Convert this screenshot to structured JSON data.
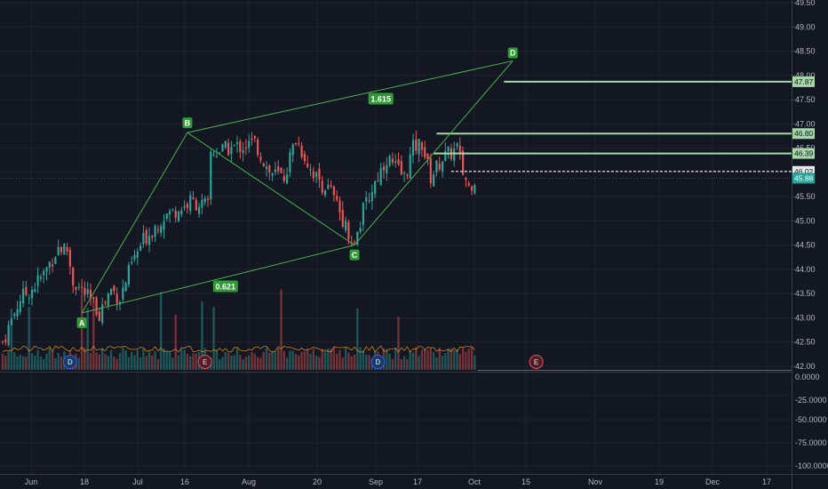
{
  "chart_data": {
    "type": "candlestick",
    "price_axis": {
      "ticks": [
        "49.50",
        "49.00",
        "48.50",
        "48.00",
        "47.50",
        "47.00",
        "46.50",
        "46.00",
        "45.50",
        "45.00",
        "44.50",
        "44.00",
        "43.50",
        "43.00",
        "42.50",
        "42.00"
      ],
      "range": [
        41.95,
        49.55
      ]
    },
    "volume_axis": {
      "ticks": [
        "0.0000",
        "-25.0000",
        "-50.0000",
        "-75.0000",
        "-100.0000"
      ]
    },
    "time_axis": {
      "labels": [
        "Jun",
        "18",
        "Jul",
        "16",
        "Aug",
        "20",
        "Sep",
        "17",
        "Oct",
        "15",
        "Nov",
        "19",
        "Dec",
        "17"
      ]
    },
    "price_tags": [
      {
        "value": 47.87,
        "label": "47.87",
        "color": "#a5d6a7"
      },
      {
        "value": 46.8,
        "label": "46.80",
        "color": "#a5d6a7"
      },
      {
        "value": 46.39,
        "label": "46.39",
        "color": "#a5d6a7"
      },
      {
        "value": 46.02,
        "label": "46.02",
        "color": "#e8e8e8"
      },
      {
        "value": 45.88,
        "label": "45.88",
        "color": "#26a69a"
      }
    ],
    "harmonic_pattern": {
      "points": [
        {
          "label": "A",
          "day": 27,
          "value": 43.1
        },
        {
          "label": "B",
          "day": 63,
          "value": 46.82
        },
        {
          "label": "C",
          "day": 120,
          "value": 44.5
        },
        {
          "label": "D",
          "day": 174,
          "value": 48.3
        }
      ],
      "ratios": [
        {
          "label": "0.621",
          "day": 76,
          "value": 43.65
        },
        {
          "label": "1.615",
          "day": 129,
          "value": 47.52
        }
      ],
      "levels": [
        {
          "value": 47.87,
          "from_day": 171
        },
        {
          "value": 46.8,
          "from_day": 148
        },
        {
          "value": 46.39,
          "from_day": 147
        }
      ],
      "dashed_level": {
        "value": 46.02,
        "from_day": 153
      }
    },
    "events": [
      {
        "letter": "D",
        "day": 23
      },
      {
        "letter": "E",
        "day": 69
      },
      {
        "letter": "D",
        "day": 128
      },
      {
        "letter": "E",
        "day": 182
      }
    ],
    "key_closes": [
      {
        "day": 0,
        "value": 42.5
      },
      {
        "day": 6,
        "value": 43.4
      },
      {
        "day": 10,
        "value": 43.6
      },
      {
        "day": 14,
        "value": 43.9
      },
      {
        "day": 19,
        "value": 44.45
      },
      {
        "day": 22,
        "value": 44.4
      },
      {
        "day": 24,
        "value": 43.75
      },
      {
        "day": 28,
        "value": 43.5
      },
      {
        "day": 33,
        "value": 43.1
      },
      {
        "day": 37,
        "value": 43.6
      },
      {
        "day": 40,
        "value": 43.4
      },
      {
        "day": 44,
        "value": 44.1
      },
      {
        "day": 48,
        "value": 44.6
      },
      {
        "day": 55,
        "value": 45.1
      },
      {
        "day": 62,
        "value": 45.3
      },
      {
        "day": 64,
        "value": 45.4
      },
      {
        "day": 70,
        "value": 45.3
      },
      {
        "day": 71,
        "value": 46.4
      },
      {
        "day": 78,
        "value": 46.5
      },
      {
        "day": 82,
        "value": 46.55
      },
      {
        "day": 86,
        "value": 46.6
      },
      {
        "day": 91,
        "value": 46.0
      },
      {
        "day": 96,
        "value": 45.9
      },
      {
        "day": 100,
        "value": 46.7
      },
      {
        "day": 104,
        "value": 46.2
      },
      {
        "day": 108,
        "value": 45.8
      },
      {
        "day": 112,
        "value": 45.6
      },
      {
        "day": 117,
        "value": 44.9
      },
      {
        "day": 120,
        "value": 44.5
      },
      {
        "day": 123,
        "value": 45.2
      },
      {
        "day": 127,
        "value": 45.8
      },
      {
        "day": 131,
        "value": 46.3
      },
      {
        "day": 134,
        "value": 46.1
      },
      {
        "day": 137,
        "value": 45.9
      },
      {
        "day": 140,
        "value": 46.5
      },
      {
        "day": 143,
        "value": 46.6
      },
      {
        "day": 146,
        "value": 45.9
      },
      {
        "day": 150,
        "value": 46.3
      },
      {
        "day": 153,
        "value": 46.4
      },
      {
        "day": 155,
        "value": 46.5
      },
      {
        "day": 157,
        "value": 46.0
      },
      {
        "day": 159,
        "value": 45.7
      },
      {
        "day": 161,
        "value": 45.88
      }
    ],
    "grid": true
  }
}
